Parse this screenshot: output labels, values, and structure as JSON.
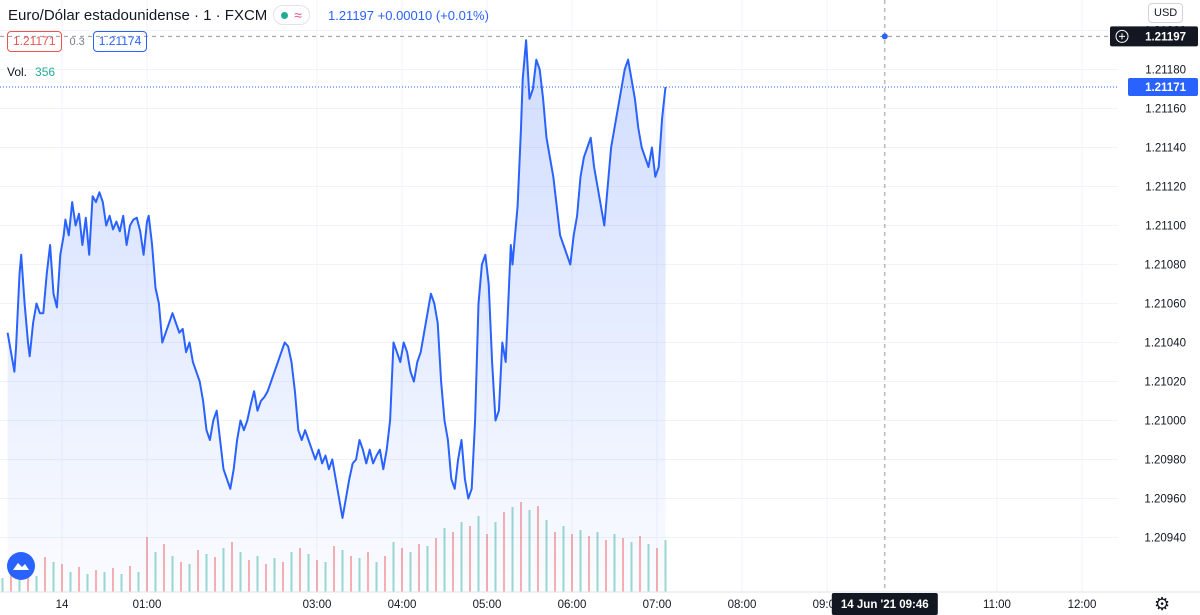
{
  "header": {
    "symbol": "Euro/Dólar estadounidense · 1 · FXCM",
    "last_price": "1.21197",
    "change": "+0.00010 (+0.01%)",
    "bid": "1.21171",
    "spread": "0.3",
    "ask": "1.21174",
    "volume_label": "Vol.",
    "volume_value": "356",
    "wave_glyph": "≈"
  },
  "price_scale": {
    "currency": "USD",
    "crosshair_label": "1.21197",
    "last_label": "1.21171"
  },
  "time_scale": {
    "crosshair_label": "14 Jun '21   09:46"
  },
  "colors": {
    "line": "#2962ff",
    "up_volume": "#22ab94",
    "down_volume": "#ef5350",
    "grid": "#f0f3fa"
  },
  "chart_data": {
    "type": "area",
    "ylim": [
      1.2093,
      1.2121
    ],
    "y_ticks": [
      "1.21200",
      "1.21180",
      "1.21160",
      "1.21140",
      "1.21120",
      "1.21100",
      "1.21080",
      "1.21060",
      "1.21040",
      "1.21020",
      "1.21000",
      "1.20980",
      "1.20960",
      "1.20940"
    ],
    "x_ticks": [
      {
        "label": "14",
        "t": 0
      },
      {
        "label": "01:00",
        "t": 50
      },
      {
        "label": "03:00",
        "t": 150
      },
      {
        "label": "04:00",
        "t": 200
      },
      {
        "label": "05:00",
        "t": 250
      },
      {
        "label": "06:00",
        "t": 300
      },
      {
        "label": "07:00",
        "t": 350
      },
      {
        "label": "08:00",
        "t": 400
      },
      {
        "label": "09:00",
        "t": 450
      },
      {
        "label": "11:00",
        "t": 550
      },
      {
        "label": "12:00",
        "t": 600
      }
    ],
    "crosshair": {
      "t": 484,
      "y": 1.21197
    },
    "last_value": 1.21171,
    "series": [
      {
        "values": [
          [
            -32,
            1.21045
          ],
          [
            -30,
            1.21035
          ],
          [
            -28,
            1.21025
          ],
          [
            -27,
            1.21038
          ],
          [
            -25,
            1.21075
          ],
          [
            -24,
            1.21085
          ],
          [
            -22,
            1.2106
          ],
          [
            -20,
            1.2104
          ],
          [
            -19,
            1.21033
          ],
          [
            -17,
            1.2105
          ],
          [
            -15,
            1.2106
          ],
          [
            -13,
            1.21055
          ],
          [
            -11,
            1.21055
          ],
          [
            -9,
            1.21075
          ],
          [
            -7,
            1.2109
          ],
          [
            -5,
            1.21065
          ],
          [
            -3,
            1.21058
          ],
          [
            -1,
            1.21085
          ],
          [
            1,
            1.21095
          ],
          [
            2,
            1.21103
          ],
          [
            4,
            1.21095
          ],
          [
            6,
            1.21112
          ],
          [
            8,
            1.211
          ],
          [
            10,
            1.21106
          ],
          [
            12,
            1.2109
          ],
          [
            14,
            1.21104
          ],
          [
            16,
            1.21085
          ],
          [
            18,
            1.21115
          ],
          [
            20,
            1.21112
          ],
          [
            22,
            1.21117
          ],
          [
            24,
            1.21112
          ],
          [
            26,
            1.211
          ],
          [
            28,
            1.21105
          ],
          [
            30,
            1.21098
          ],
          [
            32,
            1.21102
          ],
          [
            34,
            1.21097
          ],
          [
            36,
            1.21105
          ],
          [
            38,
            1.2109
          ],
          [
            40,
            1.211
          ],
          [
            42,
            1.21103
          ],
          [
            44,
            1.21104
          ],
          [
            46,
            1.21097
          ],
          [
            48,
            1.21085
          ],
          [
            50,
            1.21102
          ],
          [
            51,
            1.21105
          ],
          [
            53,
            1.2109
          ],
          [
            55,
            1.21068
          ],
          [
            57,
            1.2106
          ],
          [
            59,
            1.2104
          ],
          [
            61,
            1.21045
          ],
          [
            63,
            1.2105
          ],
          [
            65,
            1.21055
          ],
          [
            67,
            1.2105
          ],
          [
            69,
            1.21045
          ],
          [
            71,
            1.21047
          ],
          [
            73,
            1.21035
          ],
          [
            75,
            1.2104
          ],
          [
            77,
            1.2103
          ],
          [
            79,
            1.21025
          ],
          [
            81,
            1.2102
          ],
          [
            83,
            1.2101
          ],
          [
            85,
            1.20995
          ],
          [
            87,
            1.2099
          ],
          [
            89,
            1.21
          ],
          [
            91,
            1.21005
          ],
          [
            93,
            1.2099
          ],
          [
            95,
            1.20975
          ],
          [
            97,
            1.2097
          ],
          [
            99,
            1.20965
          ],
          [
            101,
            1.20975
          ],
          [
            103,
            1.2099
          ],
          [
            105,
            1.21
          ],
          [
            107,
            1.20995
          ],
          [
            109,
            1.21
          ],
          [
            111,
            1.21008
          ],
          [
            113,
            1.21015
          ],
          [
            115,
            1.21005
          ],
          [
            117,
            1.2101
          ],
          [
            119,
            1.21012
          ],
          [
            121,
            1.21015
          ],
          [
            123,
            1.2102
          ],
          [
            125,
            1.21025
          ],
          [
            127,
            1.2103
          ],
          [
            129,
            1.21035
          ],
          [
            131,
            1.2104
          ],
          [
            133,
            1.21038
          ],
          [
            135,
            1.2103
          ],
          [
            137,
            1.21015
          ],
          [
            139,
            1.20995
          ],
          [
            141,
            1.2099
          ],
          [
            143,
            1.20995
          ],
          [
            145,
            1.2099
          ],
          [
            147,
            1.20985
          ],
          [
            149,
            1.2098
          ],
          [
            151,
            1.20985
          ],
          [
            153,
            1.20978
          ],
          [
            155,
            1.20982
          ],
          [
            157,
            1.20975
          ],
          [
            159,
            1.2098
          ],
          [
            161,
            1.2097
          ],
          [
            163,
            1.2096
          ],
          [
            165,
            1.2095
          ],
          [
            167,
            1.2096
          ],
          [
            169,
            1.2097
          ],
          [
            171,
            1.20978
          ],
          [
            173,
            1.2098
          ],
          [
            175,
            1.2099
          ],
          [
            177,
            1.20985
          ],
          [
            179,
            1.20978
          ],
          [
            181,
            1.20985
          ],
          [
            183,
            1.20978
          ],
          [
            185,
            1.20982
          ],
          [
            187,
            1.20985
          ],
          [
            189,
            1.20975
          ],
          [
            191,
            1.20985
          ],
          [
            193,
            1.21
          ],
          [
            195,
            1.2104
          ],
          [
            197,
            1.21035
          ],
          [
            199,
            1.2103
          ],
          [
            201,
            1.2104
          ],
          [
            203,
            1.21035
          ],
          [
            205,
            1.21025
          ],
          [
            207,
            1.2102
          ],
          [
            209,
            1.2103
          ],
          [
            211,
            1.21035
          ],
          [
            213,
            1.21045
          ],
          [
            215,
            1.21055
          ],
          [
            217,
            1.21065
          ],
          [
            219,
            1.2106
          ],
          [
            221,
            1.2105
          ],
          [
            223,
            1.2102
          ],
          [
            225,
            1.21
          ],
          [
            227,
            1.2099
          ],
          [
            229,
            1.2097
          ],
          [
            231,
            1.20965
          ],
          [
            233,
            1.2098
          ],
          [
            235,
            1.2099
          ],
          [
            237,
            1.2097
          ],
          [
            239,
            1.2096
          ],
          [
            241,
            1.20965
          ],
          [
            243,
            1.21
          ],
          [
            245,
            1.2106
          ],
          [
            247,
            1.2108
          ],
          [
            249,
            1.21085
          ],
          [
            251,
            1.2107
          ],
          [
            253,
            1.2103
          ],
          [
            255,
            1.21
          ],
          [
            257,
            1.21005
          ],
          [
            259,
            1.2104
          ],
          [
            261,
            1.2103
          ],
          [
            263,
            1.2107
          ],
          [
            264,
            1.2109
          ],
          [
            265,
            1.2108
          ],
          [
            267,
            1.211
          ],
          [
            268,
            1.2111
          ],
          [
            270,
            1.2115
          ],
          [
            271,
            1.21175
          ],
          [
            273,
            1.21195
          ],
          [
            275,
            1.21165
          ],
          [
            277,
            1.2117
          ],
          [
            279,
            1.21185
          ],
          [
            281,
            1.2118
          ],
          [
            283,
            1.21165
          ],
          [
            285,
            1.21145
          ],
          [
            287,
            1.21135
          ],
          [
            289,
            1.21125
          ],
          [
            291,
            1.2111
          ],
          [
            293,
            1.21095
          ],
          [
            295,
            1.2109
          ],
          [
            297,
            1.21085
          ],
          [
            299,
            1.2108
          ],
          [
            301,
            1.21095
          ],
          [
            303,
            1.21105
          ],
          [
            305,
            1.21125
          ],
          [
            307,
            1.21135
          ],
          [
            309,
            1.2114
          ],
          [
            311,
            1.21145
          ],
          [
            313,
            1.2113
          ],
          [
            315,
            1.2112
          ],
          [
            317,
            1.2111
          ],
          [
            319,
            1.211
          ],
          [
            321,
            1.2112
          ],
          [
            323,
            1.2114
          ],
          [
            325,
            1.2115
          ],
          [
            327,
            1.2116
          ],
          [
            329,
            1.2117
          ],
          [
            331,
            1.2118
          ],
          [
            333,
            1.21185
          ],
          [
            335,
            1.21175
          ],
          [
            337,
            1.21165
          ],
          [
            339,
            1.2115
          ],
          [
            341,
            1.2114
          ],
          [
            343,
            1.21135
          ],
          [
            345,
            1.2113
          ],
          [
            347,
            1.2114
          ],
          [
            349,
            1.21125
          ],
          [
            351,
            1.2113
          ],
          [
            353,
            1.21155
          ],
          [
            355,
            1.21171
          ]
        ]
      }
    ],
    "volume": [
      {
        "t": -35,
        "v": 14,
        "up": true
      },
      {
        "t": -30,
        "v": 18,
        "up": false
      },
      {
        "t": -25,
        "v": 22,
        "up": true
      },
      {
        "t": -20,
        "v": 26,
        "up": false
      },
      {
        "t": -15,
        "v": 16,
        "up": true
      },
      {
        "t": -10,
        "v": 35,
        "up": false
      },
      {
        "t": -5,
        "v": 30,
        "up": true
      },
      {
        "t": 0,
        "v": 28,
        "up": false
      },
      {
        "t": 5,
        "v": 20,
        "up": true
      },
      {
        "t": 10,
        "v": 25,
        "up": false
      },
      {
        "t": 15,
        "v": 18,
        "up": true
      },
      {
        "t": 20,
        "v": 22,
        "up": false
      },
      {
        "t": 25,
        "v": 20,
        "up": true
      },
      {
        "t": 30,
        "v": 24,
        "up": false
      },
      {
        "t": 35,
        "v": 18,
        "up": true
      },
      {
        "t": 40,
        "v": 26,
        "up": false
      },
      {
        "t": 45,
        "v": 20,
        "up": true
      },
      {
        "t": 50,
        "v": 55,
        "up": false
      },
      {
        "t": 55,
        "v": 40,
        "up": true
      },
      {
        "t": 60,
        "v": 48,
        "up": false
      },
      {
        "t": 65,
        "v": 36,
        "up": true
      },
      {
        "t": 70,
        "v": 30,
        "up": false
      },
      {
        "t": 75,
        "v": 28,
        "up": true
      },
      {
        "t": 80,
        "v": 42,
        "up": false
      },
      {
        "t": 85,
        "v": 38,
        "up": true
      },
      {
        "t": 90,
        "v": 35,
        "up": false
      },
      {
        "t": 95,
        "v": 44,
        "up": true
      },
      {
        "t": 100,
        "v": 50,
        "up": false
      },
      {
        "t": 105,
        "v": 40,
        "up": true
      },
      {
        "t": 110,
        "v": 32,
        "up": false
      },
      {
        "t": 115,
        "v": 36,
        "up": true
      },
      {
        "t": 120,
        "v": 28,
        "up": false
      },
      {
        "t": 125,
        "v": 34,
        "up": true
      },
      {
        "t": 130,
        "v": 30,
        "up": false
      },
      {
        "t": 135,
        "v": 40,
        "up": true
      },
      {
        "t": 140,
        "v": 44,
        "up": false
      },
      {
        "t": 145,
        "v": 38,
        "up": true
      },
      {
        "t": 150,
        "v": 32,
        "up": false
      },
      {
        "t": 155,
        "v": 30,
        "up": true
      },
      {
        "t": 160,
        "v": 46,
        "up": false
      },
      {
        "t": 165,
        "v": 42,
        "up": true
      },
      {
        "t": 170,
        "v": 36,
        "up": false
      },
      {
        "t": 175,
        "v": 34,
        "up": true
      },
      {
        "t": 180,
        "v": 40,
        "up": false
      },
      {
        "t": 185,
        "v": 30,
        "up": true
      },
      {
        "t": 190,
        "v": 36,
        "up": false
      },
      {
        "t": 195,
        "v": 50,
        "up": true
      },
      {
        "t": 200,
        "v": 44,
        "up": false
      },
      {
        "t": 205,
        "v": 40,
        "up": true
      },
      {
        "t": 210,
        "v": 48,
        "up": false
      },
      {
        "t": 215,
        "v": 46,
        "up": true
      },
      {
        "t": 220,
        "v": 54,
        "up": false
      },
      {
        "t": 225,
        "v": 64,
        "up": true
      },
      {
        "t": 230,
        "v": 60,
        "up": false
      },
      {
        "t": 235,
        "v": 70,
        "up": true
      },
      {
        "t": 240,
        "v": 66,
        "up": false
      },
      {
        "t": 245,
        "v": 76,
        "up": true
      },
      {
        "t": 250,
        "v": 58,
        "up": false
      },
      {
        "t": 255,
        "v": 70,
        "up": true
      },
      {
        "t": 260,
        "v": 80,
        "up": false
      },
      {
        "t": 265,
        "v": 85,
        "up": true
      },
      {
        "t": 270,
        "v": 90,
        "up": false
      },
      {
        "t": 275,
        "v": 82,
        "up": true
      },
      {
        "t": 280,
        "v": 86,
        "up": false
      },
      {
        "t": 285,
        "v": 72,
        "up": true
      },
      {
        "t": 290,
        "v": 60,
        "up": false
      },
      {
        "t": 295,
        "v": 66,
        "up": true
      },
      {
        "t": 300,
        "v": 58,
        "up": false
      },
      {
        "t": 305,
        "v": 62,
        "up": true
      },
      {
        "t": 310,
        "v": 56,
        "up": false
      },
      {
        "t": 315,
        "v": 60,
        "up": true
      },
      {
        "t": 320,
        "v": 52,
        "up": false
      },
      {
        "t": 325,
        "v": 58,
        "up": true
      },
      {
        "t": 330,
        "v": 54,
        "up": false
      },
      {
        "t": 335,
        "v": 50,
        "up": true
      },
      {
        "t": 340,
        "v": 56,
        "up": false
      },
      {
        "t": 345,
        "v": 48,
        "up": true
      },
      {
        "t": 350,
        "v": 44,
        "up": false
      },
      {
        "t": 355,
        "v": 52,
        "up": true
      }
    ]
  }
}
